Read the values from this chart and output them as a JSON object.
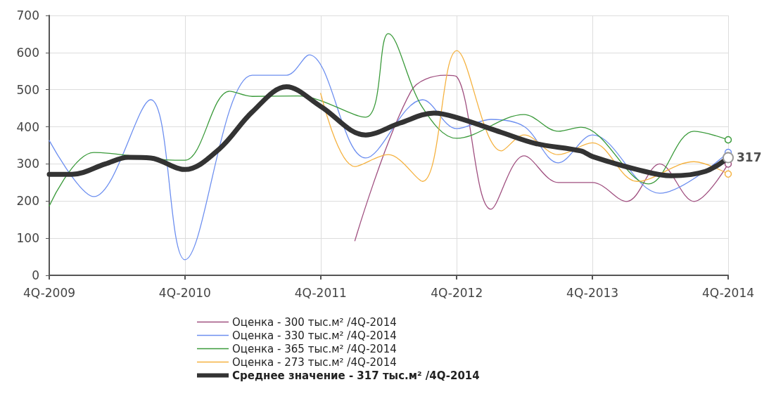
{
  "chart_data": {
    "type": "line",
    "xlim": [
      "2009-11",
      "2014-11"
    ],
    "xticks": [
      {
        "value": "2009-11",
        "label": "4Q-2009"
      },
      {
        "value": "2010-11",
        "label": "4Q-2010"
      },
      {
        "value": "2011-11",
        "label": "4Q-2011"
      },
      {
        "value": "2012-11",
        "label": "4Q-2012"
      },
      {
        "value": "2013-11",
        "label": "4Q-2013"
      },
      {
        "value": "2014-11",
        "label": "4Q-2014"
      }
    ],
    "ylim": [
      0,
      700
    ],
    "yticks": [
      0,
      100,
      200,
      300,
      400,
      500,
      600,
      700
    ],
    "grid": true,
    "legend": "bottom",
    "annotations": [
      {
        "text": "317",
        "x": "2014-11",
        "y": 317
      }
    ],
    "series": [
      {
        "name": "Оценка - 300 тыс.м² /4Q-2014",
        "color": "#a05080",
        "x": [
          "2012-02",
          "2012-07",
          "2012-10",
          "2012-11",
          "2013-02",
          "2013-05",
          "2013-08",
          "2013-11",
          "2014-02",
          "2014-05",
          "2014-08",
          "2014-11"
        ],
        "values": [
          93,
          496,
          539,
          535,
          178,
          322,
          250,
          250,
          199,
          300,
          199,
          300
        ]
      },
      {
        "name": "Оценка - 330 тыс.м² /4Q-2014",
        "color": "#6d8ff0",
        "x": [
          "2009-11",
          "2010-03",
          "2010-08",
          "2010-11",
          "2011-05",
          "2011-08",
          "2011-10",
          "2012-03",
          "2012-08",
          "2012-11",
          "2013-02",
          "2013-05",
          "2013-08",
          "2013-11",
          "2014-05",
          "2014-11"
        ],
        "values": [
          363,
          212,
          473,
          42,
          539,
          539,
          594,
          316,
          473,
          395,
          420,
          401,
          303,
          378,
          221,
          331
        ]
      },
      {
        "name": "Оценка - 365 тыс.м² /4Q-2014",
        "color": "#3a9a3a",
        "x": [
          "2009-11",
          "2010-03",
          "2010-09",
          "2010-11",
          "2011-03",
          "2011-05",
          "2011-09",
          "2012-03",
          "2012-05",
          "2012-08",
          "2012-11",
          "2013-05",
          "2013-08",
          "2013-10",
          "2014-04",
          "2014-08",
          "2014-11"
        ],
        "values": [
          187,
          331,
          312,
          310,
          496,
          482,
          483,
          426,
          651,
          452,
          369,
          433,
          388,
          399,
          246,
          388,
          365
        ]
      },
      {
        "name": "Оценка - 273 тыс.м² /4Q-2014",
        "color": "#f5b240",
        "x": [
          "2011-11",
          "2012-02",
          "2012-05",
          "2012-08",
          "2012-11",
          "2013-03",
          "2013-05",
          "2013-08",
          "2013-11",
          "2014-03",
          "2014-08",
          "2014-11"
        ],
        "values": [
          490,
          293,
          325,
          253,
          605,
          335,
          378,
          325,
          357,
          253,
          306,
          273
        ]
      },
      {
        "name": "Среднее значение - 317 тыс.м² /4Q-2014",
        "color": "#333333",
        "x": [
          "2009-11",
          "2010-01",
          "2010-04",
          "2010-06",
          "2010-08",
          "2010-11",
          "2011-02",
          "2011-05",
          "2011-08",
          "2011-11",
          "2012-03",
          "2012-06",
          "2012-09",
          "2012-11",
          "2013-03",
          "2013-06",
          "2013-10",
          "2013-11",
          "2014-03",
          "2014-06",
          "2014-09",
          "2014-11"
        ],
        "values": [
          272,
          272,
          300,
          318,
          316,
          285,
          340,
          440,
          508,
          455,
          378,
          410,
          437,
          425,
          385,
          355,
          335,
          320,
          285,
          268,
          280,
          317
        ]
      }
    ]
  }
}
